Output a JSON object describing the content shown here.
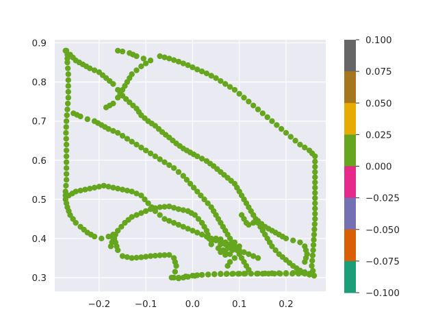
{
  "chart_data": {
    "type": "scatter",
    "title": "",
    "xlabel": "",
    "ylabel": "",
    "xlim": [
      -0.295,
      0.285
    ],
    "ylim": [
      0.265,
      0.908
    ],
    "x_ticks": [
      -0.2,
      -0.1,
      0.0,
      0.1,
      0.2
    ],
    "x_tick_labels": [
      "−0.2",
      "−0.1",
      "0.0",
      "0.1",
      "0.2"
    ],
    "y_ticks": [
      0.3,
      0.4,
      0.5,
      0.6,
      0.7,
      0.8,
      0.9
    ],
    "y_tick_labels": [
      "0.3",
      "0.4",
      "0.5",
      "0.6",
      "0.7",
      "0.8",
      "0.9"
    ],
    "grid": true,
    "background": "#EAEAF2",
    "marker_color": "#66A61E",
    "colorbar": {
      "range": [
        -0.1,
        0.1
      ],
      "ticks": [
        0.1,
        0.075,
        0.05,
        0.025,
        0.0,
        -0.025,
        -0.05,
        -0.075,
        -0.1
      ],
      "tick_labels": [
        "0.100",
        "0.075",
        "0.050",
        "0.025",
        "0.000",
        "−0.025",
        "−0.050",
        "−0.075",
        "−0.100"
      ],
      "colors_top_to_bottom": [
        "#666666",
        "#A6761D",
        "#E6AB02",
        "#66A61E",
        "#E7298A",
        "#7570B3",
        "#D95F02",
        "#1B9E77"
      ]
    },
    "paths": [
      [
        [
          -0.272,
          0.88
        ],
        [
          -0.268,
          0.87
        ],
        [
          -0.268,
          0.85
        ],
        [
          -0.266,
          0.82
        ],
        [
          -0.266,
          0.79
        ],
        [
          -0.266,
          0.76
        ],
        [
          -0.268,
          0.73
        ],
        [
          -0.27,
          0.7
        ],
        [
          -0.271,
          0.67
        ],
        [
          -0.27,
          0.64
        ],
        [
          -0.27,
          0.61
        ],
        [
          -0.27,
          0.58
        ],
        [
          -0.27,
          0.55
        ],
        [
          -0.272,
          0.52
        ],
        [
          -0.272,
          0.5
        ],
        [
          -0.268,
          0.48
        ],
        [
          -0.262,
          0.46
        ],
        [
          -0.25,
          0.44
        ],
        [
          -0.24,
          0.43
        ],
        [
          -0.225,
          0.415
        ],
        [
          -0.21,
          0.405
        ],
        [
          -0.195,
          0.4
        ],
        [
          -0.18,
          0.405
        ],
        [
          -0.17,
          0.41
        ],
        [
          -0.165,
          0.39
        ],
        [
          -0.16,
          0.37
        ],
        [
          -0.15,
          0.355
        ],
        [
          -0.13,
          0.35
        ],
        [
          -0.11,
          0.352
        ],
        [
          -0.09,
          0.355
        ],
        [
          -0.07,
          0.357
        ],
        [
          -0.05,
          0.358
        ],
        [
          -0.04,
          0.35
        ],
        [
          -0.035,
          0.33
        ],
        [
          -0.04,
          0.3
        ],
        [
          -0.03,
          0.298
        ],
        [
          -0.01,
          0.302
        ],
        [
          0.02,
          0.307
        ],
        [
          0.06,
          0.31
        ],
        [
          0.1,
          0.31
        ],
        [
          0.15,
          0.31
        ],
        [
          0.2,
          0.31
        ],
        [
          0.24,
          0.31
        ],
        [
          0.26,
          0.305
        ]
      ],
      [
        [
          0.26,
          0.305
        ],
        [
          0.255,
          0.33
        ],
        [
          0.258,
          0.37
        ],
        [
          0.26,
          0.41
        ],
        [
          0.262,
          0.45
        ],
        [
          0.262,
          0.49
        ],
        [
          0.262,
          0.53
        ],
        [
          0.262,
          0.57
        ],
        [
          0.262,
          0.61
        ],
        [
          0.25,
          0.625
        ],
        [
          0.23,
          0.64
        ],
        [
          0.21,
          0.66
        ],
        [
          0.19,
          0.68
        ],
        [
          0.17,
          0.7
        ],
        [
          0.15,
          0.72
        ],
        [
          0.13,
          0.74
        ],
        [
          0.11,
          0.76
        ],
        [
          0.09,
          0.78
        ],
        [
          0.07,
          0.795
        ],
        [
          0.05,
          0.81
        ],
        [
          0.03,
          0.822
        ],
        [
          0.01,
          0.832
        ],
        [
          -0.01,
          0.843
        ],
        [
          -0.03,
          0.852
        ],
        [
          -0.05,
          0.86
        ],
        [
          -0.07,
          0.866
        ]
      ],
      [
        [
          -0.27,
          0.88
        ],
        [
          -0.262,
          0.87
        ],
        [
          -0.25,
          0.855
        ],
        [
          -0.235,
          0.845
        ],
        [
          -0.22,
          0.835
        ],
        [
          -0.2,
          0.825
        ],
        [
          -0.185,
          0.81
        ],
        [
          -0.17,
          0.795
        ],
        [
          -0.16,
          0.78
        ],
        [
          -0.15,
          0.765
        ],
        [
          -0.135,
          0.748
        ],
        [
          -0.12,
          0.732
        ],
        [
          -0.11,
          0.715
        ],
        [
          -0.095,
          0.7
        ],
        [
          -0.08,
          0.688
        ],
        [
          -0.065,
          0.672
        ],
        [
          -0.05,
          0.658
        ],
        [
          -0.035,
          0.643
        ],
        [
          -0.02,
          0.63
        ],
        [
          -0.005,
          0.62
        ],
        [
          0.01,
          0.61
        ],
        [
          0.03,
          0.598
        ],
        [
          0.045,
          0.585
        ],
        [
          0.06,
          0.57
        ],
        [
          0.075,
          0.555
        ],
        [
          0.09,
          0.54
        ],
        [
          0.1,
          0.52
        ],
        [
          0.11,
          0.5
        ],
        [
          0.12,
          0.48
        ],
        [
          0.13,
          0.46
        ],
        [
          0.14,
          0.44
        ],
        [
          0.15,
          0.42
        ],
        [
          0.16,
          0.4
        ],
        [
          0.17,
          0.38
        ],
        [
          0.185,
          0.36
        ],
        [
          0.2,
          0.345
        ],
        [
          0.215,
          0.33
        ],
        [
          0.23,
          0.318
        ],
        [
          0.25,
          0.31
        ]
      ],
      [
        [
          -0.16,
          0.88
        ],
        [
          -0.15,
          0.878
        ],
        [
          -0.135,
          0.874
        ],
        [
          -0.12,
          0.866
        ],
        [
          -0.105,
          0.86
        ],
        [
          -0.09,
          0.855
        ],
        [
          -0.11,
          0.84
        ],
        [
          -0.13,
          0.82
        ],
        [
          -0.14,
          0.8
        ],
        [
          -0.15,
          0.78
        ],
        [
          -0.16,
          0.76
        ],
        [
          -0.17,
          0.745
        ],
        [
          -0.185,
          0.735
        ]
      ],
      [
        [
          -0.255,
          0.72
        ],
        [
          -0.24,
          0.712
        ],
        [
          -0.225,
          0.705
        ],
        [
          -0.21,
          0.7
        ],
        [
          -0.195,
          0.69
        ],
        [
          -0.18,
          0.68
        ],
        [
          -0.16,
          0.67
        ],
        [
          -0.14,
          0.655
        ],
        [
          -0.12,
          0.64
        ],
        [
          -0.1,
          0.625
        ],
        [
          -0.08,
          0.61
        ],
        [
          -0.06,
          0.595
        ],
        [
          -0.04,
          0.58
        ],
        [
          -0.02,
          0.56
        ],
        [
          -0.005,
          0.54
        ],
        [
          0.01,
          0.52
        ],
        [
          0.025,
          0.5
        ],
        [
          0.04,
          0.48
        ],
        [
          0.05,
          0.46
        ],
        [
          0.06,
          0.44
        ],
        [
          0.07,
          0.42
        ],
        [
          0.08,
          0.4
        ],
        [
          0.09,
          0.38
        ],
        [
          0.1,
          0.36
        ],
        [
          0.11,
          0.34
        ],
        [
          0.12,
          0.32
        ]
      ],
      [
        [
          -0.265,
          0.51
        ],
        [
          -0.25,
          0.52
        ],
        [
          -0.23,
          0.525
        ],
        [
          -0.21,
          0.53
        ],
        [
          -0.19,
          0.535
        ],
        [
          -0.17,
          0.53
        ],
        [
          -0.15,
          0.525
        ],
        [
          -0.13,
          0.52
        ],
        [
          -0.11,
          0.51
        ],
        [
          -0.095,
          0.49
        ],
        [
          -0.08,
          0.47
        ],
        [
          -0.06,
          0.45
        ],
        [
          -0.04,
          0.44
        ],
        [
          -0.02,
          0.43
        ],
        [
          0.0,
          0.42
        ],
        [
          0.02,
          0.41
        ],
        [
          0.04,
          0.4
        ],
        [
          0.06,
          0.39
        ],
        [
          0.08,
          0.38
        ],
        [
          0.1,
          0.37
        ],
        [
          0.12,
          0.36
        ],
        [
          0.14,
          0.35
        ]
      ],
      [
        [
          -0.175,
          0.38
        ],
        [
          -0.17,
          0.4
        ],
        [
          -0.16,
          0.42
        ],
        [
          -0.145,
          0.44
        ],
        [
          -0.13,
          0.455
        ],
        [
          -0.11,
          0.465
        ],
        [
          -0.09,
          0.475
        ],
        [
          -0.07,
          0.48
        ],
        [
          -0.05,
          0.482
        ],
        [
          -0.03,
          0.475
        ],
        [
          -0.01,
          0.47
        ],
        [
          0.005,
          0.46
        ],
        [
          0.02,
          0.44
        ],
        [
          0.03,
          0.42
        ],
        [
          0.035,
          0.4
        ],
        [
          0.04,
          0.385
        ]
      ],
      [
        [
          0.04,
          0.395
        ],
        [
          0.05,
          0.4
        ],
        [
          0.06,
          0.398
        ],
        [
          0.07,
          0.39
        ],
        [
          0.075,
          0.375
        ],
        [
          0.07,
          0.365
        ],
        [
          0.06,
          0.365
        ],
        [
          0.055,
          0.375
        ],
        [
          0.06,
          0.385
        ],
        [
          0.07,
          0.39
        ],
        [
          0.08,
          0.385
        ],
        [
          0.085,
          0.37
        ],
        [
          0.08,
          0.36
        ],
        [
          0.07,
          0.358
        ],
        [
          0.065,
          0.37
        ],
        [
          0.075,
          0.385
        ],
        [
          0.09,
          0.39
        ],
        [
          0.1,
          0.38
        ],
        [
          0.1,
          0.365
        ],
        [
          0.09,
          0.35
        ],
        [
          0.08,
          0.34
        ],
        [
          0.075,
          0.33
        ]
      ],
      [
        [
          0.105,
          0.46
        ],
        [
          0.11,
          0.45
        ],
        [
          0.115,
          0.44
        ],
        [
          0.12,
          0.435
        ],
        [
          0.13,
          0.44
        ],
        [
          0.14,
          0.445
        ],
        [
          0.155,
          0.43
        ],
        [
          0.17,
          0.42
        ],
        [
          0.185,
          0.41
        ],
        [
          0.2,
          0.4
        ],
        [
          0.215,
          0.395
        ],
        [
          0.23,
          0.39
        ],
        [
          0.24,
          0.38
        ],
        [
          0.245,
          0.36
        ],
        [
          0.24,
          0.34
        ]
      ],
      [
        [
          -0.045,
          0.3
        ],
        [
          -0.03,
          0.3
        ],
        [
          -0.015,
          0.303
        ],
        [
          0.0,
          0.305
        ],
        [
          0.02,
          0.307
        ],
        [
          0.06,
          0.309
        ],
        [
          0.11,
          0.31
        ],
        [
          0.17,
          0.311
        ],
        [
          0.215,
          0.312
        ],
        [
          0.235,
          0.313
        ]
      ]
    ]
  }
}
